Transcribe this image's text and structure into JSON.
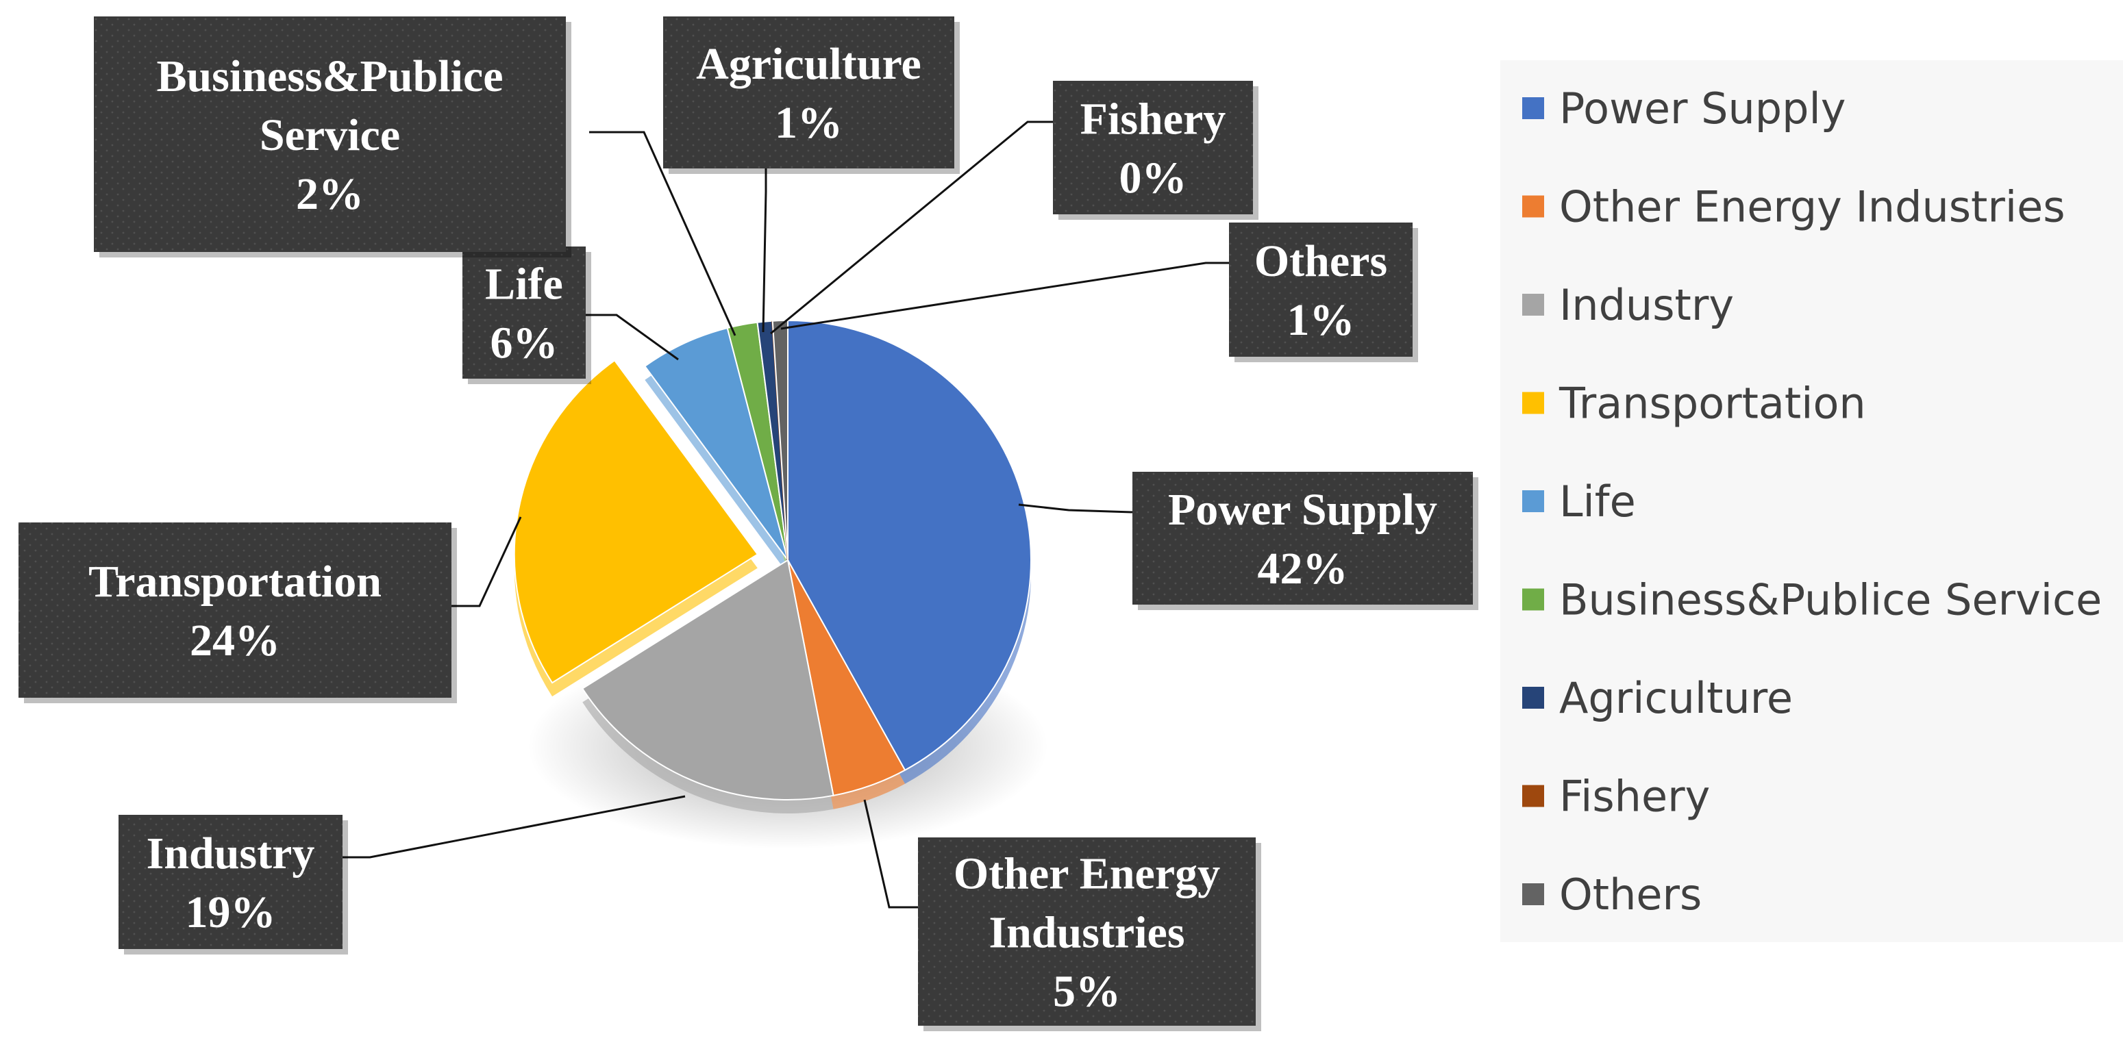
{
  "chart_data": {
    "type": "pie",
    "title": "",
    "legend_position": "right",
    "slices": [
      {
        "name": "Power Supply",
        "value": 42,
        "label": "42%",
        "color": "#4472C4"
      },
      {
        "name": "Other Energy Industries",
        "value": 5,
        "label": "5%",
        "color": "#ED7D31"
      },
      {
        "name": "Industry",
        "value": 19,
        "label": "19%",
        "color": "#A5A5A5"
      },
      {
        "name": "Transportation",
        "value": 24,
        "label": "24%",
        "color": "#FFC000"
      },
      {
        "name": "Life",
        "value": 6,
        "label": "6%",
        "color": "#5B9BD5"
      },
      {
        "name": "Business&Publice Service",
        "value": 2,
        "label": "2%",
        "color": "#70AD47"
      },
      {
        "name": "Agriculture",
        "value": 1,
        "label": "1%",
        "color": "#264478"
      },
      {
        "name": "Fishery",
        "value": 0,
        "label": "0%",
        "color": "#9E480E"
      },
      {
        "name": "Others",
        "value": 1,
        "label": "1%",
        "color": "#636363"
      }
    ],
    "exploded_slice": "Transportation"
  }
}
